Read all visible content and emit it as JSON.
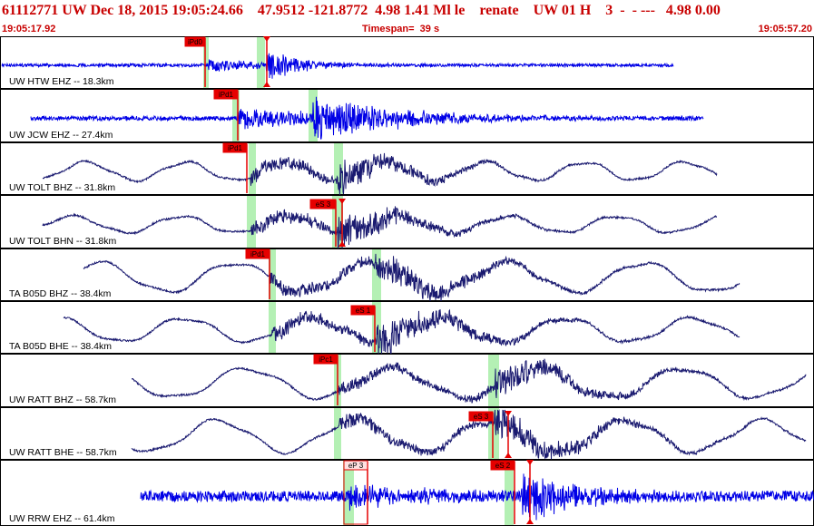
{
  "header": {
    "title": "61112771 UW Dec 18, 2015 19:05:24.66    47.9512 -121.8772  4.98 1.41 Ml le    renate    UW 01 H    3  -  - ---   4.98 0.00",
    "start_time": "19:05:17.92",
    "timespan": "Timespan=  39 s",
    "end_time": "19:05:57.20"
  },
  "colors": {
    "title_text": "#c80000",
    "trace_blue": "#0000e6",
    "trace_navy": "#1a1a70",
    "pick_red": "#e60000",
    "pick_text": "#000000",
    "window_green": "#b4f0b4",
    "panel_border": "#000000"
  },
  "panels": [
    {
      "label": "UW HTW EHZ -- 18.3km",
      "picks": [
        {
          "text": "iPd0"
        },
        {
          "text": ""
        }
      ]
    },
    {
      "label": "UW JCW EHZ -- 27.4km",
      "picks": [
        {
          "text": "iPd1"
        }
      ]
    },
    {
      "label": "UW TOLT BHZ -- 31.8km",
      "picks": [
        {
          "text": "iPd1"
        }
      ]
    },
    {
      "label": "UW TOLT BHN -- 31.8km",
      "picks": [
        {
          "text": "eS 3"
        }
      ]
    },
    {
      "label": "TA B05D BHZ -- 38.4km",
      "picks": [
        {
          "text": "iPd1"
        }
      ]
    },
    {
      "label": "TA B05D BHE -- 38.4km",
      "picks": [
        {
          "text": "eS 1"
        }
      ]
    },
    {
      "label": "UW RATT BHZ -- 58.7km",
      "picks": [
        {
          "text": "iPc1"
        }
      ]
    },
    {
      "label": "UW RATT BHE -- 58.7km",
      "picks": [
        {
          "text": "eS 3"
        }
      ]
    },
    {
      "label": "UW RRW EHZ -- 61.4km",
      "picks": [
        {
          "text": "eP 3"
        },
        {
          "text": "eS 2"
        }
      ]
    }
  ]
}
